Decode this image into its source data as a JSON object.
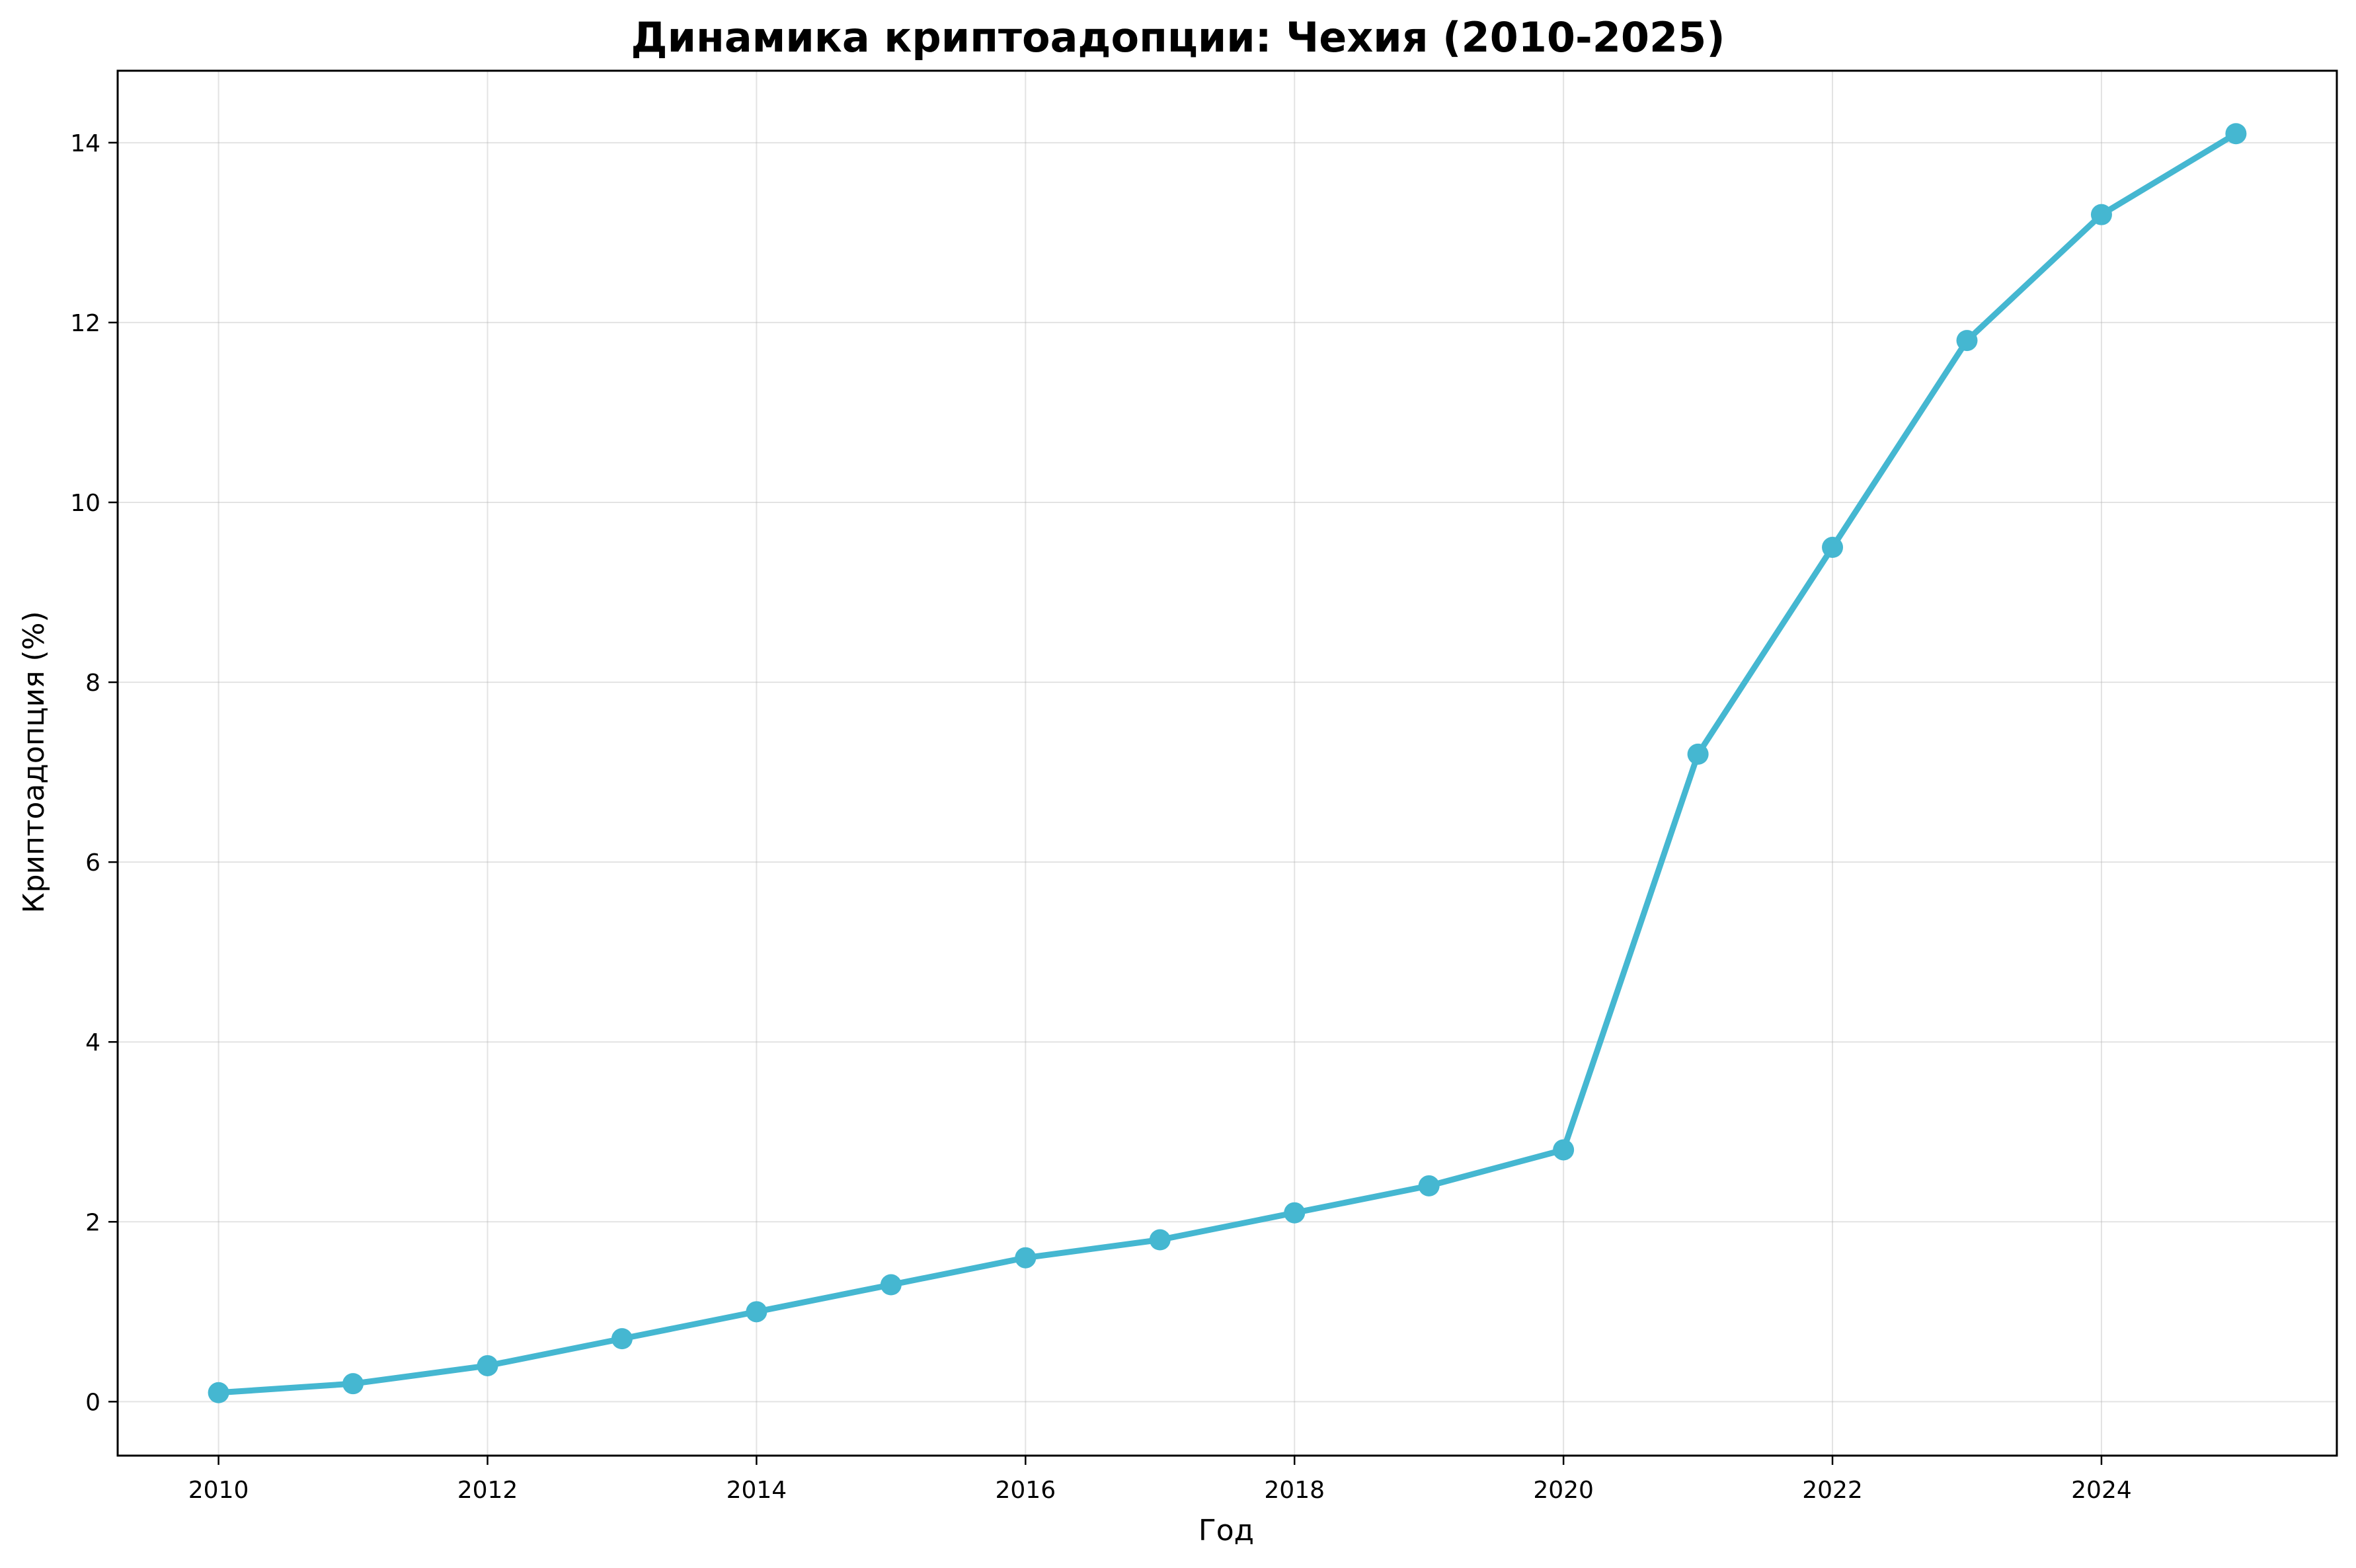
{
  "chart_data": {
    "type": "line",
    "title": "Динамика криптоадопции: Чехия (2010-2025)",
    "xlabel": "Год",
    "ylabel": "Криптоадопция (%)",
    "x": [
      2010,
      2011,
      2012,
      2013,
      2014,
      2015,
      2016,
      2017,
      2018,
      2019,
      2020,
      2021,
      2022,
      2023,
      2024,
      2025
    ],
    "series": [
      {
        "values": [
          0.1,
          0.2,
          0.4,
          0.7,
          1.0,
          1.3,
          1.6,
          1.8,
          2.1,
          2.4,
          2.8,
          7.2,
          9.5,
          11.8,
          13.2,
          14.1
        ],
        "color": "#45b7d1",
        "marker": "circle"
      }
    ],
    "xticks": [
      2010,
      2012,
      2014,
      2016,
      2018,
      2020,
      2022,
      2024
    ],
    "yticks": [
      0,
      2,
      4,
      6,
      8,
      10,
      12,
      14
    ],
    "xlim": [
      2009.25,
      2025.75
    ],
    "ylim": [
      -0.6,
      14.8
    ],
    "grid": true,
    "legend": false
  }
}
